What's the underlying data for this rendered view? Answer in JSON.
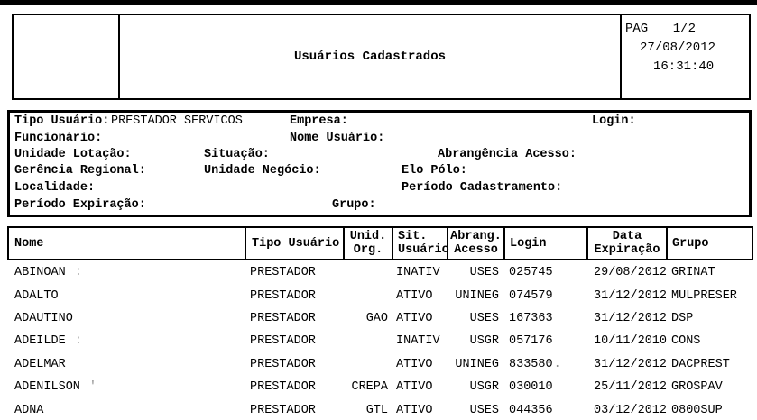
{
  "colors": {
    "text": "#000000",
    "border": "#000000",
    "background": "#ffffff",
    "redaction_mark": "#8f8f8f"
  },
  "report": {
    "title": "Usuários Cadastrados",
    "page_label": "PAG",
    "page_value": "1/2",
    "date": "27/08/2012",
    "time": "16:31:40"
  },
  "filters": {
    "tipo_usuario_label": "Tipo Usuário:",
    "tipo_usuario_value": "PRESTADOR SERVICOS",
    "empresa_label": "Empresa:",
    "login_label": "Login:",
    "funcionario_label": "Funcionário:",
    "nome_usuario_label": "Nome Usuário:",
    "unidade_lotacao_label": "Unidade Lotação:",
    "situacao_label": "Situação:",
    "abrangencia_acesso_label": "Abrangência Acesso:",
    "gerencia_regional_label": "Gerência Regional:",
    "unidade_negocio_label": "Unidade Negócio:",
    "elo_polo_label": "Elo Pólo:",
    "localidade_label": "Localidade:",
    "periodo_cadastramento_label": "Período Cadastramento:",
    "periodo_expiracao_label": "Período Expiração:",
    "grupo_label": "Grupo:"
  },
  "table": {
    "headers": [
      "Nome",
      "Tipo Usuário",
      "Unid.\nOrg.",
      "Sit.\nUsuário",
      "Abrang.\nAcesso",
      "Login",
      "Data\nExpiração",
      "Grupo"
    ],
    "rows": [
      {
        "nome": "ABINOAN",
        "nome_mark": ":",
        "tipo": "PRESTADOR",
        "unid": "",
        "sit": "INATIV",
        "abrang": "USES",
        "login": "025745",
        "login_mark": "",
        "data": "29/08/2012",
        "grupo": "GRINAT"
      },
      {
        "nome": "ADALTO",
        "nome_mark": "",
        "tipo": "PRESTADOR",
        "unid": "",
        "sit": "ATIVO",
        "abrang": "UNINEG",
        "login": "074579",
        "login_mark": "",
        "data": "31/12/2012",
        "grupo": "MULPRESER"
      },
      {
        "nome": "ADAUTINO",
        "nome_mark": "",
        "tipo": "PRESTADOR",
        "unid": "GAO",
        "sit": "ATIVO",
        "abrang": "USES",
        "login": "167363",
        "login_mark": "",
        "data": "31/12/2012",
        "grupo": "DSP"
      },
      {
        "nome": "ADEILDE",
        "nome_mark": ":",
        "tipo": "PRESTADOR",
        "unid": "",
        "sit": "INATIV",
        "abrang": "USGR",
        "login": "057176",
        "login_mark": "",
        "data": "10/11/2010",
        "grupo": "CONS"
      },
      {
        "nome": "ADELMAR",
        "nome_mark": "",
        "tipo": "PRESTADOR",
        "unid": "",
        "sit": "ATIVO",
        "abrang": "UNINEG",
        "login": "833580",
        "login_mark": ".",
        "data": "31/12/2012",
        "grupo": "DACPREST"
      },
      {
        "nome": "ADENILSON",
        "nome_mark": "'",
        "tipo": "PRESTADOR",
        "unid": "CREPA",
        "sit": "ATIVO",
        "abrang": "USGR",
        "login": "030010",
        "login_mark": "",
        "data": "25/11/2012",
        "grupo": "GROSPAV"
      },
      {
        "nome": "ADNA",
        "nome_mark": "",
        "tipo": "PRESTADOR",
        "unid": "GTL",
        "sit": "ATIVO",
        "abrang": "USES",
        "login": "044356",
        "login_mark": "",
        "data": "03/12/2012",
        "grupo": "0800SUP"
      }
    ]
  }
}
